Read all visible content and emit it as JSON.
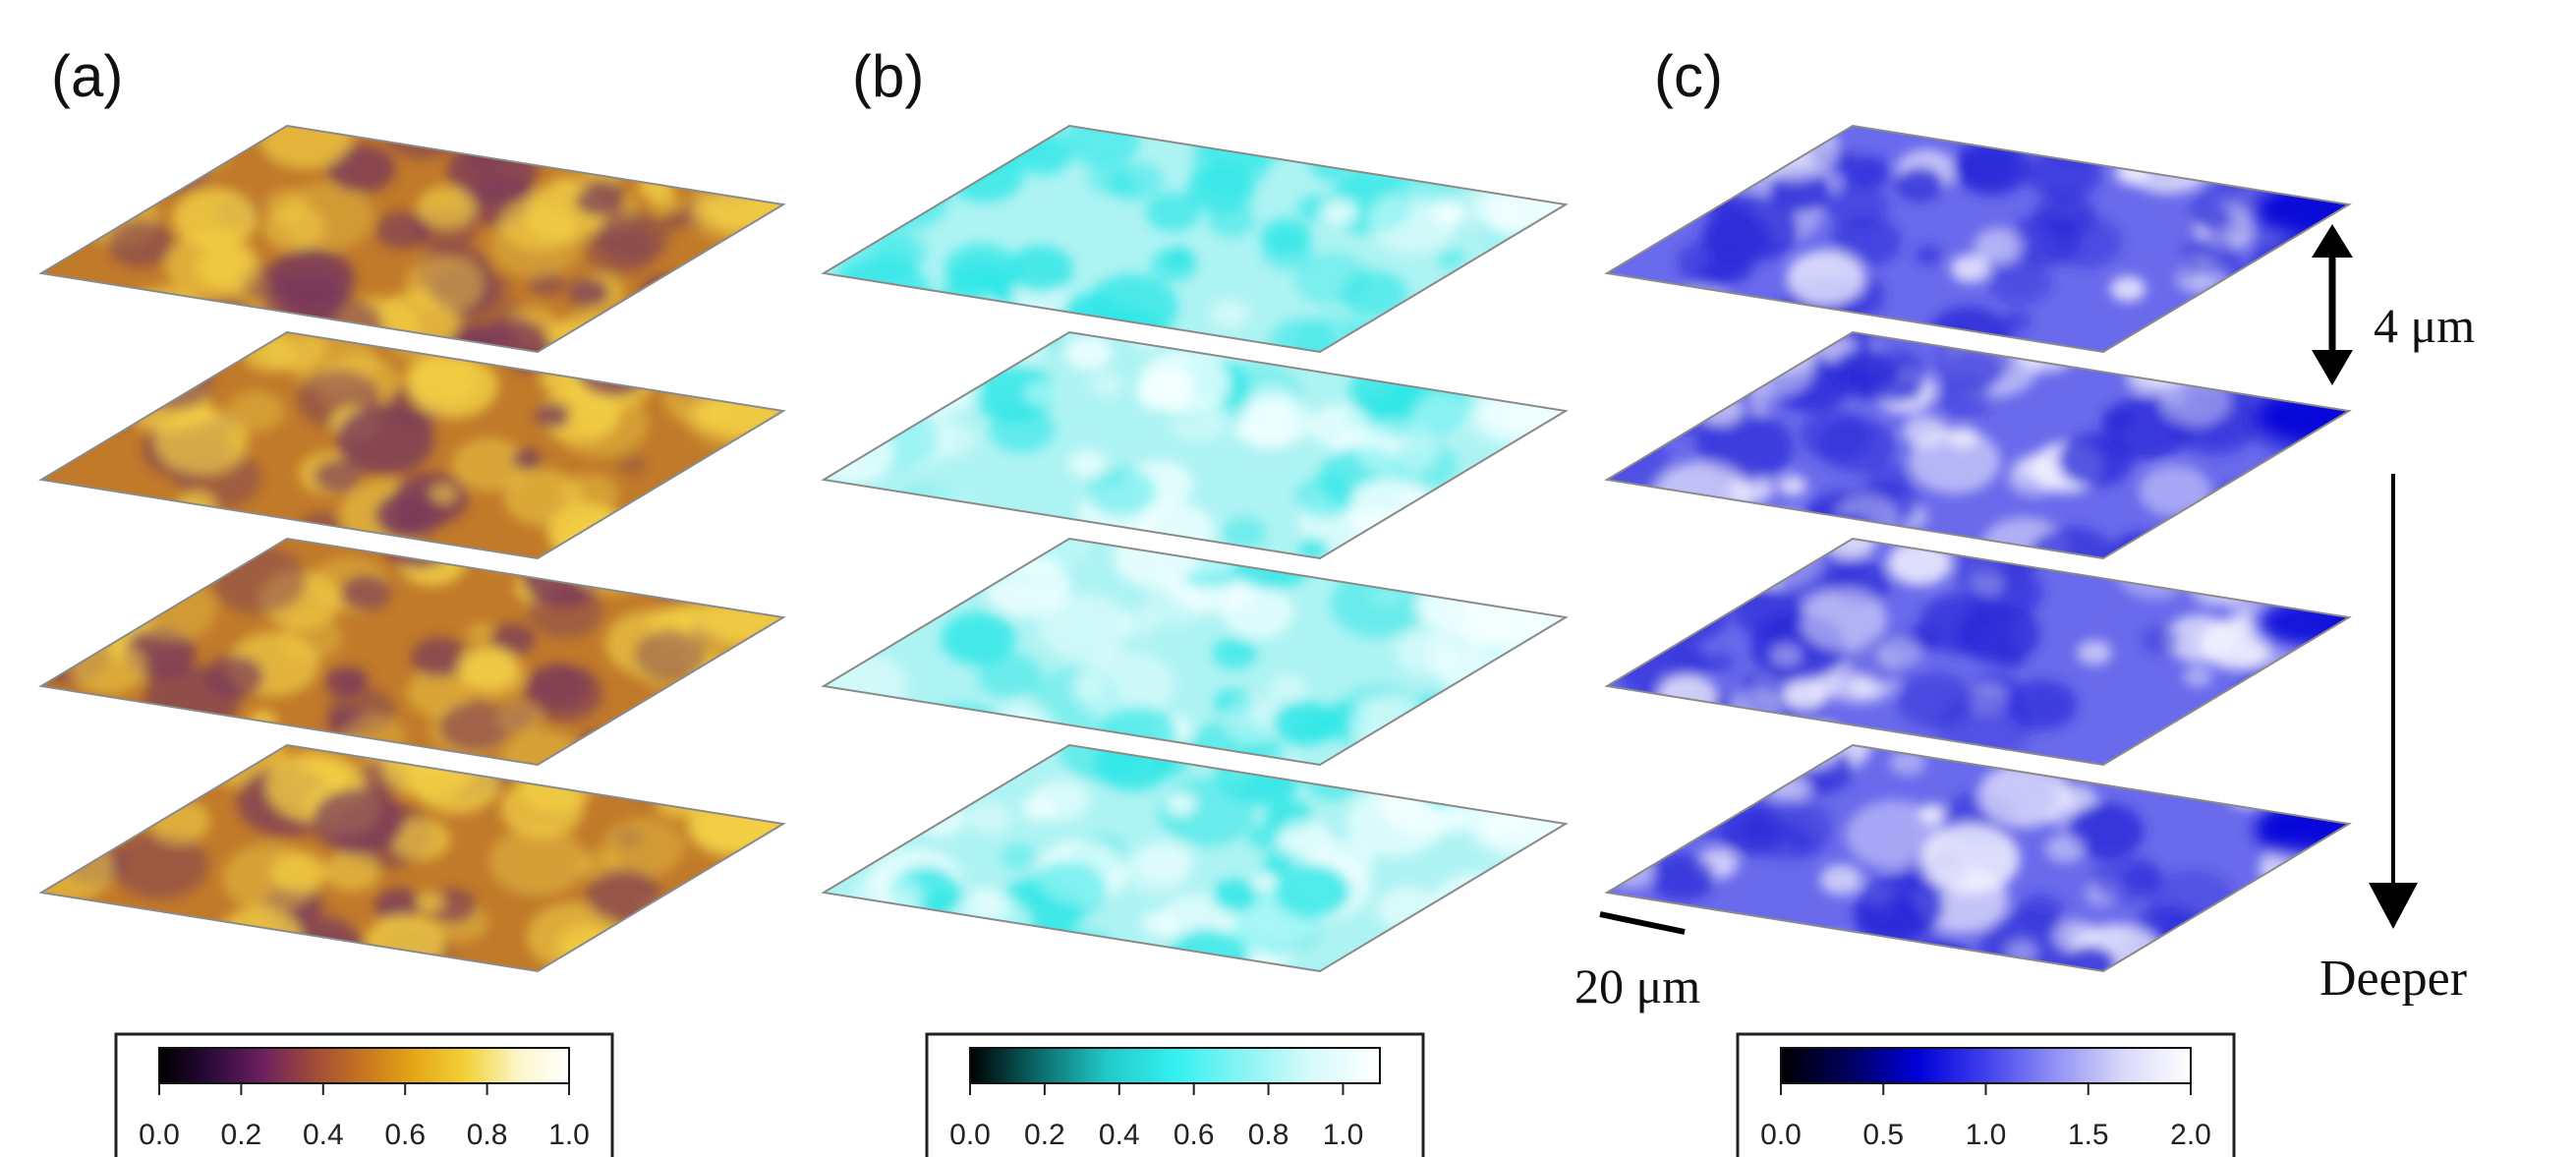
{
  "panels": [
    {
      "label": "(a)",
      "colormap": [
        "#000000",
        "#2a0a3a",
        "#6b2060",
        "#a04a3a",
        "#c8761f",
        "#e6a817",
        "#f2d23a",
        "#fbf6c8",
        "#ffffff"
      ],
      "base_color": "#c07a2a",
      "dark_color": "#7a3a5a",
      "light_color": "#f4d246",
      "colorbar": {
        "ticks": [
          "0.0",
          "0.2",
          "0.4",
          "0.6",
          "0.8",
          "1.0"
        ]
      }
    },
    {
      "label": "(b)",
      "colormap": [
        "#000000",
        "#0a6a6a",
        "#22c8c8",
        "#33f0f0",
        "#8af4f4",
        "#d8fafa",
        "#ffffff"
      ],
      "base_color": "#aef3f3",
      "dark_color": "#2ee6e6",
      "light_color": "#f4ffff",
      "colorbar": {
        "ticks": [
          "0.0",
          "0.2",
          "0.4",
          "0.6",
          "0.8",
          "1.0"
        ]
      }
    },
    {
      "label": "(c)",
      "colormap": [
        "#000000",
        "#000060",
        "#0000d8",
        "#4040ee",
        "#9090f4",
        "#d8d8fb",
        "#ffffff"
      ],
      "base_color": "#6a6aec",
      "dark_color": "#2a2ad8",
      "light_color": "#f4f4ff",
      "colorbar": {
        "ticks": [
          "0.0",
          "0.5",
          "1.0",
          "1.5",
          "2.0"
        ]
      }
    }
  ],
  "annotations": {
    "spacing_label": "4 μm",
    "scale_label": "20 μm",
    "depth_label": "Deeper"
  }
}
